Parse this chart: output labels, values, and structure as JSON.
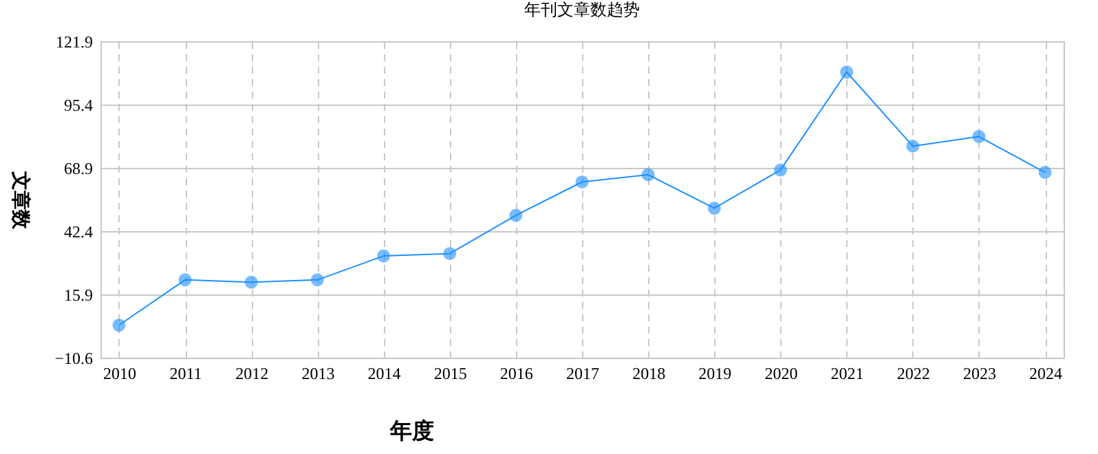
{
  "chart_data": {
    "type": "line",
    "title": "年刊文章数趋势",
    "xlabel": "年度",
    "ylabel": "文章数",
    "categories": [
      "2010",
      "2011",
      "2012",
      "2013",
      "2014",
      "2015",
      "2016",
      "2017",
      "2018",
      "2019",
      "2020",
      "2021",
      "2022",
      "2023",
      "2024"
    ],
    "series": [
      {
        "color": "#1e90ff",
        "values": [
          3,
          22,
          21,
          22,
          32,
          33,
          49,
          63,
          66,
          52,
          68,
          109,
          78,
          82,
          67
        ]
      }
    ],
    "ylim": [
      -10.6,
      121.9
    ],
    "yticks": [
      -10.6,
      15.9,
      42.4,
      68.9,
      95.4,
      121.9
    ],
    "grid": true,
    "marker": "circle",
    "line_style": "solid"
  }
}
